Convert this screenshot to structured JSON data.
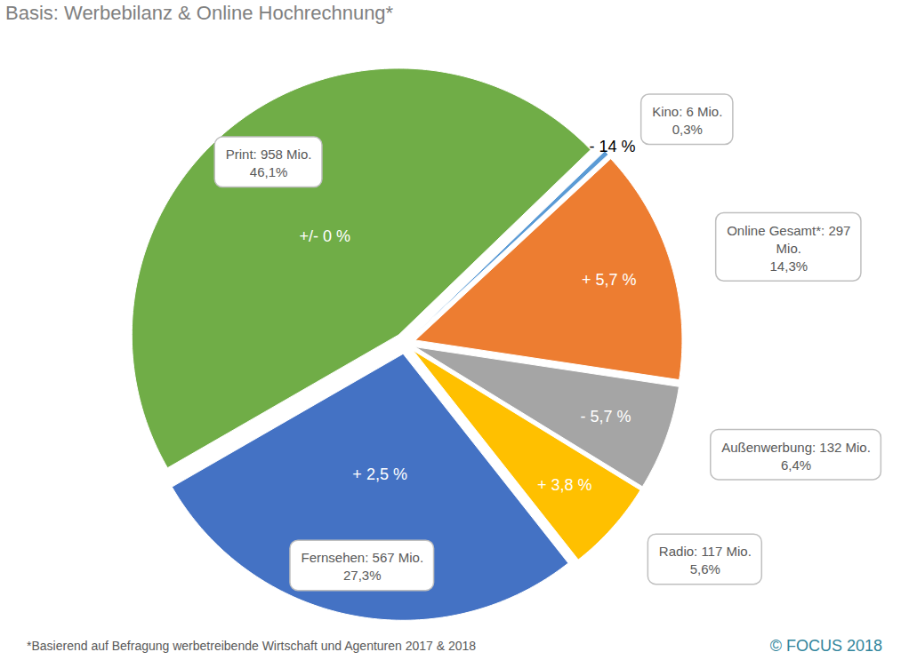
{
  "chart_data": {
    "type": "pie",
    "title": "Basis: Werbebilanz & Online Hochrechnung*",
    "categories": [
      "Kino",
      "Online Gesamt*",
      "Außenwerbung",
      "Radio",
      "Fernsehen",
      "Print"
    ],
    "values": [
      0.3,
      14.3,
      6.4,
      5.6,
      27.3,
      46.1
    ],
    "value_labels": [
      "0,3%",
      "14,3%",
      "6,4%",
      "5,6%",
      "27,3%",
      "46,1%"
    ],
    "amounts": [
      6,
      297,
      132,
      117,
      567,
      958
    ],
    "amount_labels": [
      "Kino: 6 Mio.",
      "Online Gesamt*: 297\nMio.",
      "Außenwerbung: 132 Mio.",
      "Radio: 117 Mio.",
      "Fernsehen: 567 Mio.",
      "Print: 958 Mio."
    ],
    "changes": [
      -14,
      5.7,
      -5.7,
      3.8,
      2.5,
      0
    ],
    "change_labels": [
      "- 14 %",
      "+ 5,7 %",
      "- 5,7 %",
      "+ 3,8 %",
      "+ 2,5 %",
      "+/- 0 %"
    ],
    "colors": [
      "#5b9bd5",
      "#ed7d31",
      "#a5a5a5",
      "#ffc000",
      "#4472c4",
      "#70ad47"
    ],
    "data_labels": true,
    "footnote": "*Basierend auf Befragung werbetreibende Wirtschaft und Agenturen 2017 & 2018",
    "source": "© FOCUS 2018"
  }
}
